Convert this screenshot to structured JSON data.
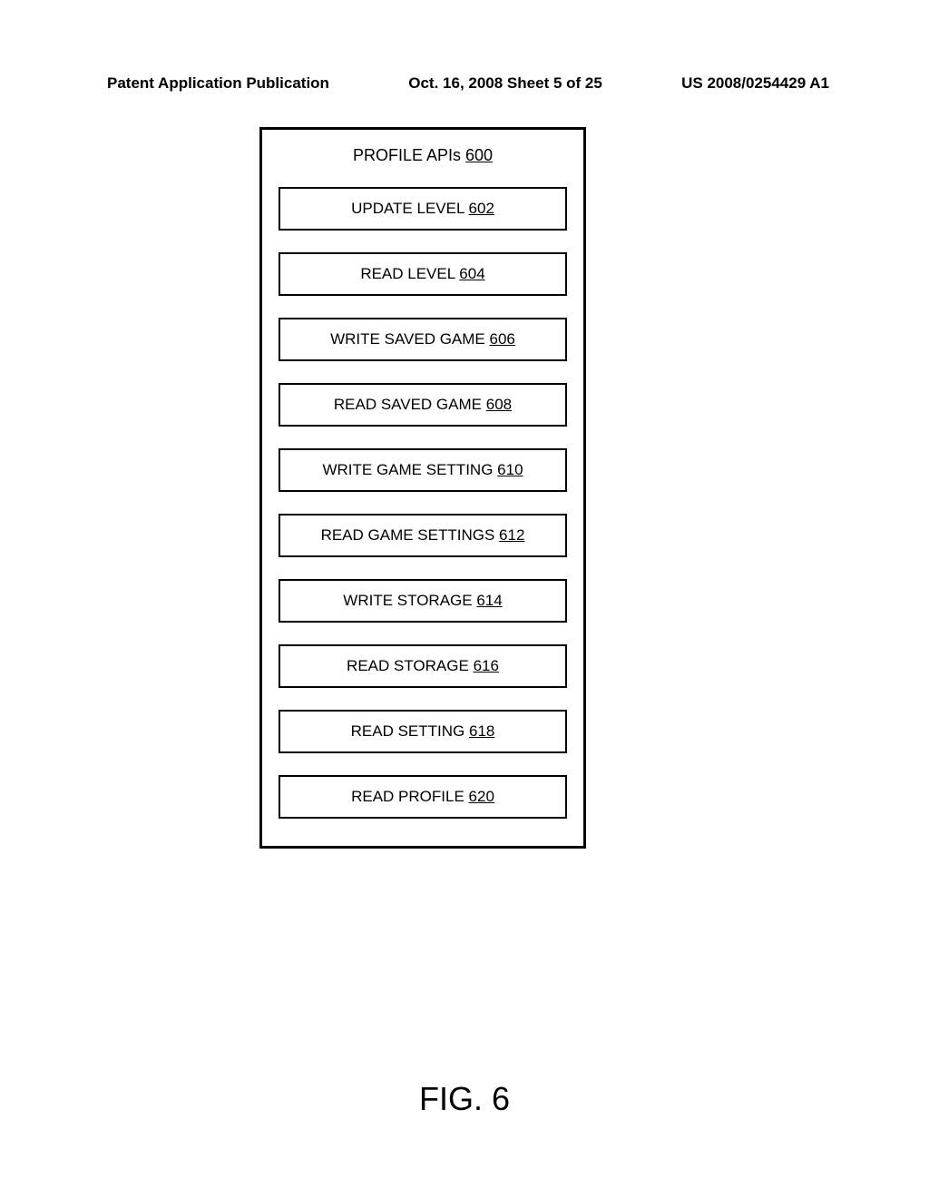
{
  "header": {
    "left": "Patent Application Publication",
    "center": "Oct. 16, 2008  Sheet 5 of 25",
    "right": "US 2008/0254429 A1"
  },
  "diagram": {
    "title_text": "PROFILE APIs",
    "title_ref": "600",
    "boxes": [
      {
        "label": "UPDATE LEVEL",
        "ref": "602"
      },
      {
        "label": "READ LEVEL",
        "ref": "604"
      },
      {
        "label": "WRITE SAVED GAME",
        "ref": "606"
      },
      {
        "label": "READ SAVED GAME",
        "ref": "608"
      },
      {
        "label": "WRITE GAME SETTING",
        "ref": "610"
      },
      {
        "label": "READ GAME SETTINGS",
        "ref": "612"
      },
      {
        "label": "WRITE STORAGE",
        "ref": "614"
      },
      {
        "label": "READ STORAGE",
        "ref": "616"
      },
      {
        "label": "READ SETTING",
        "ref": "618"
      },
      {
        "label": "READ PROFILE",
        "ref": "620"
      }
    ]
  },
  "figure_label": "FIG. 6",
  "styling": {
    "page_bg": "#ffffff",
    "border_color": "#000000",
    "border_width_outer": 3,
    "border_width_inner": 2.5,
    "header_fontsize": 17,
    "box_fontsize": 17,
    "title_fontsize": 18,
    "figure_fontsize": 36,
    "box_spacing": 24
  }
}
